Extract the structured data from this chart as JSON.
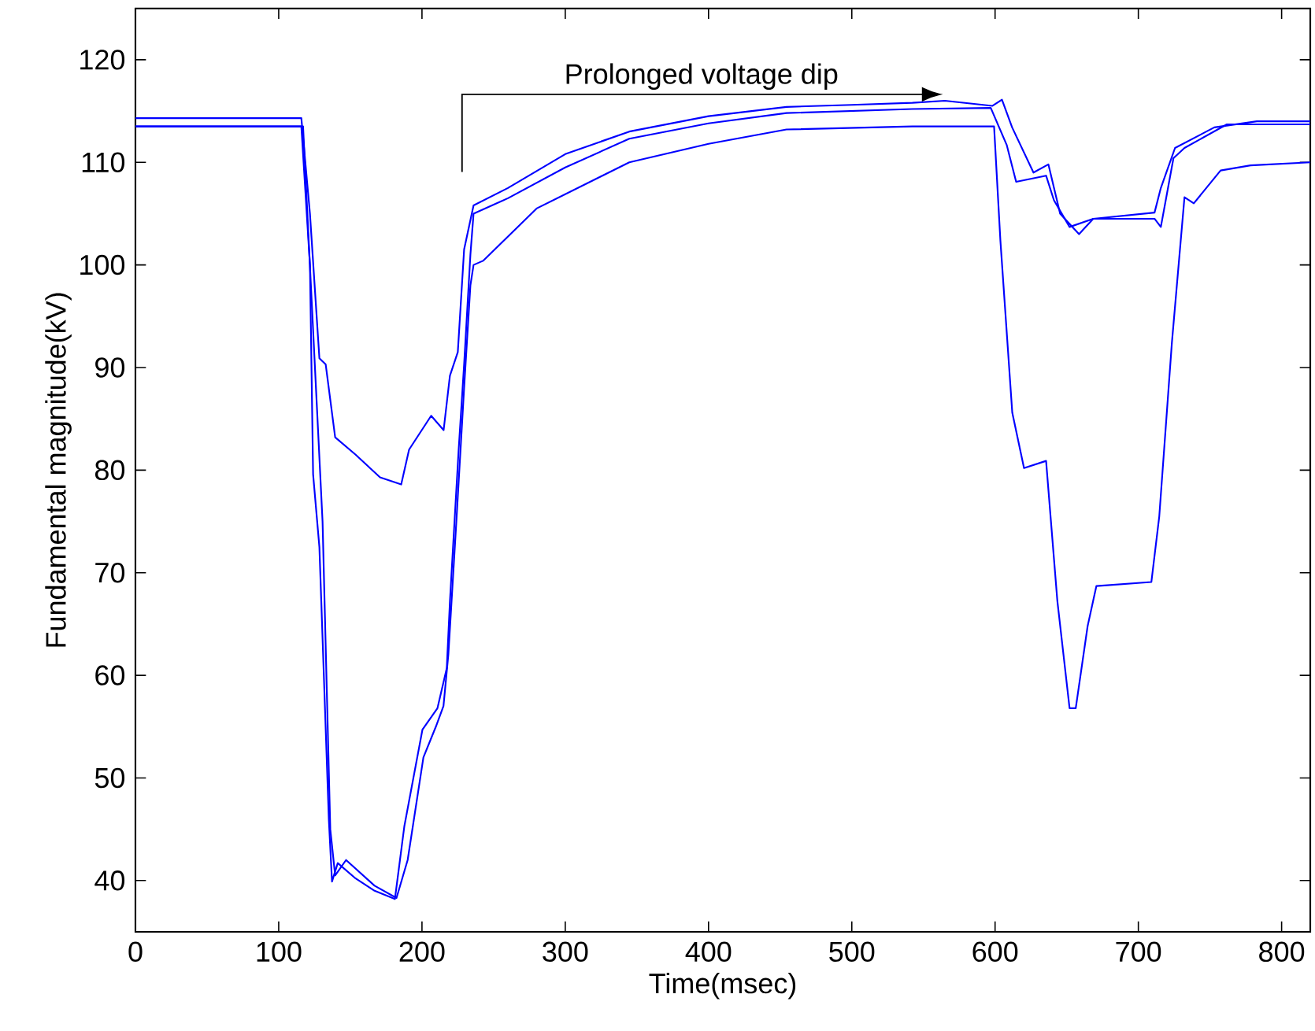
{
  "chart_data": {
    "type": "line",
    "xlabel": "Time(msec)",
    "ylabel": "Fundamental magnitude(kV)",
    "xlim": [
      0,
      820
    ],
    "ylim": [
      35,
      125
    ],
    "xticks": [
      0,
      100,
      200,
      300,
      400,
      500,
      600,
      700,
      800
    ],
    "yticks": [
      40,
      50,
      60,
      70,
      80,
      90,
      100,
      110,
      120
    ],
    "grid": false,
    "marker": "none",
    "line_style": "solid",
    "annotations": [
      "Prolonged voltage dip"
    ],
    "series": [
      {
        "color": "#0000ff",
        "x": [
          0,
          115.8,
          121.8,
          128.4,
          132.8,
          139.4,
          153.7,
          170.7,
          185.5,
          191,
          206.4,
          215.1,
          219.5,
          225,
          229.4,
          236,
          260,
          300,
          344.7,
          400,
          454.4,
          500,
          542.3,
          565,
          598,
          604.8,
          611.9,
          626.8,
          637.2,
          645.4,
          658.6,
          668.5,
          711.3,
          715.7,
          725.6,
          753,
          782.7,
          820
        ],
        "values": [
          114.3,
          114.3,
          105,
          90.9,
          90.3,
          83.2,
          81.5,
          79.3,
          78.6,
          82,
          85.3,
          83.9,
          89.2,
          91.5,
          101.5,
          105.8,
          107.5,
          110.8,
          113,
          114.5,
          115.4,
          115.6,
          115.8,
          116,
          115.5,
          116.1,
          113.4,
          109,
          109.8,
          105,
          103,
          104.5,
          105.1,
          107.5,
          111.4,
          113.4,
          114,
          114
        ]
      },
      {
        "color": "#0000ff",
        "x": [
          0,
          115.8,
          121.8,
          124,
          128.4,
          135,
          137.2,
          141.2,
          153.7,
          166.9,
          181.1,
          187.7,
          200.3,
          210.8,
          217.3,
          219.5,
          225.6,
          229.4,
          233.8,
          236,
          260,
          300,
          344.7,
          400,
          454.4,
          542.3,
          597,
          608.1,
          614.7,
          635.6,
          641.1,
          652,
          668.5,
          711.3,
          715.7,
          724.5,
          732.2,
          761.8,
          820
        ],
        "values": [
          113.5,
          113.5,
          100,
          79.6,
          72.5,
          45.9,
          39.9,
          41.7,
          40.2,
          39,
          38.2,
          45.3,
          54.7,
          56.8,
          60.7,
          67.2,
          82,
          90.3,
          101,
          105,
          106.5,
          109.5,
          112.3,
          113.8,
          114.8,
          115.2,
          115.3,
          111.7,
          108.1,
          108.7,
          106.3,
          103.7,
          104.5,
          104.5,
          103.7,
          110.4,
          111.4,
          113.7,
          113.7
        ]
      },
      {
        "color": "#0000ff",
        "x": [
          0,
          117,
          130.6,
          136,
          139.4,
          147,
          166.9,
          182.2,
          190,
          201,
          209.7,
          215,
          218.4,
          224,
          229.4,
          233.8,
          236,
          242.6,
          280,
          344.7,
          400,
          454.4,
          542.3,
          599.3,
          603.7,
          612,
          620.2,
          635.6,
          643.5,
          652,
          656.3,
          664.6,
          670.7,
          709.1,
          714.6,
          723.4,
          732.2,
          738.7,
          757.4,
          778.3,
          820
        ],
        "values": [
          113.5,
          113.5,
          75,
          45,
          40.5,
          42,
          39.5,
          38.3,
          42,
          52,
          55,
          57,
          62,
          75,
          88,
          98,
          100,
          100.4,
          105.5,
          110,
          111.8,
          113.2,
          113.5,
          113.5,
          102.4,
          85.6,
          80.2,
          80.9,
          67.2,
          56.8,
          56.8,
          64.8,
          68.7,
          69.1,
          75.5,
          92.4,
          106.6,
          106,
          109.2,
          109.7,
          110
        ]
      }
    ]
  }
}
